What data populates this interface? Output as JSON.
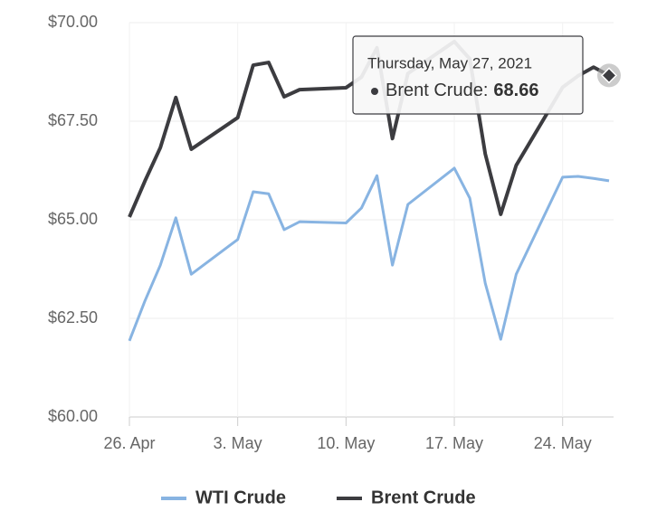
{
  "chart_data": {
    "type": "line",
    "x": [
      "2021-04-26",
      "2021-04-27",
      "2021-04-28",
      "2021-04-29",
      "2021-04-30",
      "2021-05-03",
      "2021-05-04",
      "2021-05-05",
      "2021-05-06",
      "2021-05-07",
      "2021-05-10",
      "2021-05-11",
      "2021-05-12",
      "2021-05-13",
      "2021-05-14",
      "2021-05-17",
      "2021-05-18",
      "2021-05-19",
      "2021-05-20",
      "2021-05-21",
      "2021-05-24",
      "2021-05-25",
      "2021-05-26",
      "2021-05-27"
    ],
    "series": [
      {
        "name": "WTI Crude",
        "color": "#88b4e2",
        "values": [
          61.93,
          62.94,
          63.85,
          65.05,
          63.62,
          64.5,
          65.71,
          65.66,
          64.75,
          64.95,
          64.92,
          65.3,
          66.12,
          63.85,
          65.39,
          66.31,
          65.55,
          63.39,
          61.97,
          63.62,
          66.08,
          66.1,
          66.05,
          65.99
        ]
      },
      {
        "name": "Brent Crude",
        "color": "#3c3c40",
        "values": [
          65.07,
          65.98,
          66.83,
          68.1,
          66.79,
          67.59,
          68.92,
          68.99,
          68.12,
          68.3,
          68.35,
          68.62,
          69.36,
          67.06,
          68.71,
          69.52,
          69.08,
          66.67,
          65.14,
          66.38,
          68.36,
          68.65,
          68.87,
          68.66
        ]
      }
    ],
    "xlim": [
      "2021-04-26",
      "2021-05-27"
    ],
    "xticks": [
      {
        "value": "2021-04-26",
        "label": "26. Apr"
      },
      {
        "value": "2021-05-03",
        "label": "3. May"
      },
      {
        "value": "2021-05-10",
        "label": "10. May"
      },
      {
        "value": "2021-05-17",
        "label": "17. May"
      },
      {
        "value": "2021-05-24",
        "label": "24. May"
      }
    ],
    "ylim": [
      60,
      70
    ],
    "yticks": [
      {
        "value": 60,
        "label": "$60.00"
      },
      {
        "value": 62.5,
        "label": "$62.50"
      },
      {
        "value": 65,
        "label": "$65.00"
      },
      {
        "value": 67.5,
        "label": "$67.50"
      },
      {
        "value": 70,
        "label": "$70.00"
      }
    ],
    "grid": true,
    "legend": "bottom",
    "tooltip": {
      "title": "Thursday, May 27, 2021",
      "label": "Brent Crude:",
      "series": 1,
      "index": 23
    }
  }
}
